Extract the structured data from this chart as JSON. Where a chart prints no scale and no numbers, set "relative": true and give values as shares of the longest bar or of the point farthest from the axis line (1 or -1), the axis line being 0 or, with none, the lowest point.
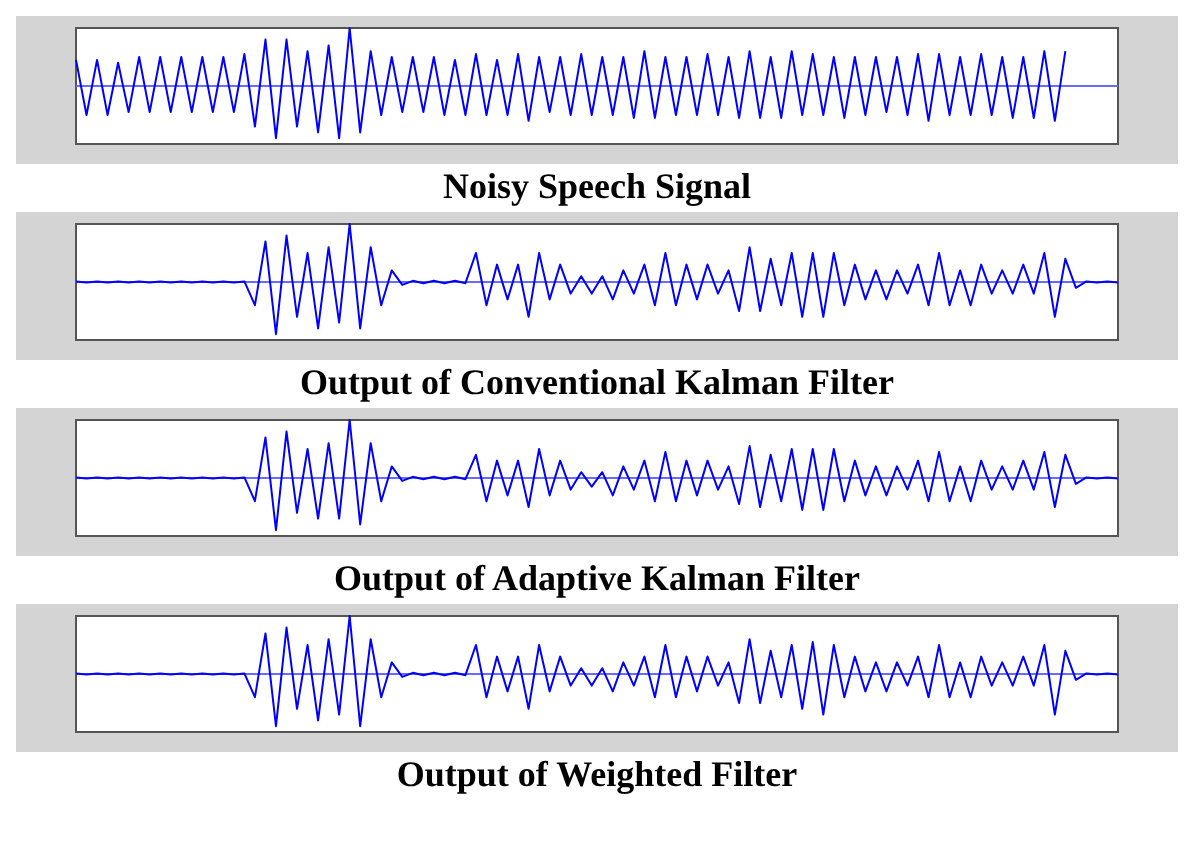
{
  "chart_data": [
    {
      "type": "line",
      "title": "Noisy Speech Signal",
      "relative": true,
      "ref_lines": [
        {
          "axis": "y",
          "value": 0,
          "color": "#6a6aff"
        }
      ],
      "tick_labels": false,
      "color": "#0000ff",
      "categories": [
        null,
        null,
        null,
        null,
        null,
        null,
        null,
        null,
        null,
        null,
        null,
        null,
        null,
        null,
        null,
        null,
        null,
        null,
        null,
        null,
        null,
        null,
        null,
        null,
        null,
        null,
        null,
        null,
        null,
        null,
        null,
        null,
        null,
        null,
        null,
        null,
        null,
        null,
        null,
        null,
        null,
        null,
        null,
        null,
        null,
        null,
        null,
        null,
        null,
        null,
        null,
        null,
        null,
        null,
        null,
        null,
        null,
        null,
        null,
        null,
        null,
        null,
        null,
        null,
        null,
        null,
        null,
        null,
        null,
        null,
        null,
        null,
        null,
        null,
        null,
        null,
        null,
        null,
        null,
        null,
        null,
        null,
        null,
        null,
        null,
        null,
        null,
        null,
        null,
        null,
        null,
        null,
        null,
        null,
        null,
        null,
        null,
        null,
        null,
        null
      ],
      "values": [
        0.45,
        -0.5,
        0.45,
        -0.5,
        0.4,
        -0.45,
        0.5,
        -0.45,
        0.5,
        -0.45,
        0.5,
        -0.45,
        0.5,
        -0.45,
        0.5,
        -0.45,
        0.55,
        -0.7,
        0.8,
        -0.9,
        0.8,
        -0.7,
        0.6,
        -0.8,
        0.7,
        -0.9,
        1.0,
        -0.8,
        0.6,
        -0.5,
        0.5,
        -0.45,
        0.5,
        -0.45,
        0.5,
        -0.5,
        0.45,
        -0.5,
        0.55,
        -0.5,
        0.45,
        -0.5,
        0.55,
        -0.6,
        0.5,
        -0.45,
        0.5,
        -0.5,
        0.55,
        -0.5,
        0.5,
        -0.5,
        0.5,
        -0.55,
        0.6,
        -0.55,
        0.5,
        -0.5,
        0.5,
        -0.5,
        0.55,
        -0.5,
        0.5,
        -0.55,
        0.6,
        -0.55,
        0.5,
        -0.55,
        0.6,
        -0.5,
        0.55,
        -0.5,
        0.5,
        -0.55,
        0.5,
        -0.5,
        0.5,
        -0.45,
        0.5,
        -0.5,
        0.55,
        -0.6,
        0.55,
        -0.5,
        0.5,
        -0.5,
        0.55,
        -0.5,
        0.5,
        -0.55,
        0.5,
        -0.55,
        0.6,
        -0.6,
        0.6,
        null,
        null,
        null,
        null,
        null
      ]
    },
    {
      "type": "line",
      "title": "Output of Conventional Kalman Filter",
      "relative": true,
      "ref_lines": [
        {
          "axis": "y",
          "value": 0,
          "color": "#6a6aff"
        }
      ],
      "tick_labels": false,
      "color": "#0000ff",
      "categories": [
        null,
        null,
        null,
        null,
        null,
        null,
        null,
        null,
        null,
        null,
        null,
        null,
        null,
        null,
        null,
        null,
        null,
        null,
        null,
        null,
        null,
        null,
        null,
        null,
        null,
        null,
        null,
        null,
        null,
        null,
        null,
        null,
        null,
        null,
        null,
        null,
        null,
        null,
        null,
        null,
        null,
        null,
        null,
        null,
        null,
        null,
        null,
        null,
        null,
        null,
        null,
        null,
        null,
        null,
        null,
        null,
        null,
        null,
        null,
        null,
        null,
        null,
        null,
        null,
        null,
        null,
        null,
        null,
        null,
        null,
        null,
        null,
        null,
        null,
        null,
        null,
        null,
        null,
        null,
        null,
        null,
        null,
        null,
        null,
        null,
        null,
        null,
        null,
        null,
        null,
        null,
        null,
        null,
        null,
        null,
        null,
        null,
        null,
        null,
        null
      ],
      "values": [
        0.01,
        -0.01,
        0.01,
        -0.01,
        0.01,
        -0.01,
        0.01,
        -0.01,
        0.01,
        -0.01,
        0.01,
        -0.01,
        0.01,
        -0.01,
        0.01,
        -0.01,
        0.01,
        -0.4,
        0.7,
        -0.9,
        0.8,
        -0.6,
        0.5,
        -0.8,
        0.6,
        -0.7,
        1.0,
        -0.8,
        0.6,
        -0.4,
        0.2,
        -0.05,
        0.02,
        -0.02,
        0.02,
        -0.02,
        0.02,
        -0.02,
        0.5,
        -0.4,
        0.3,
        -0.3,
        0.3,
        -0.6,
        0.5,
        -0.3,
        0.3,
        -0.2,
        0.1,
        -0.2,
        0.1,
        -0.3,
        0.2,
        -0.2,
        0.3,
        -0.4,
        0.5,
        -0.4,
        0.3,
        -0.3,
        0.3,
        -0.2,
        0.2,
        -0.5,
        0.6,
        -0.5,
        0.4,
        -0.4,
        0.5,
        -0.6,
        0.5,
        -0.6,
        0.5,
        -0.4,
        0.3,
        -0.3,
        0.2,
        -0.3,
        0.2,
        -0.2,
        0.3,
        -0.4,
        0.5,
        -0.4,
        0.2,
        -0.4,
        0.3,
        -0.2,
        0.2,
        -0.2,
        0.3,
        -0.2,
        0.5,
        -0.6,
        0.4,
        -0.1,
        0.01,
        -0.01,
        0.01,
        -0.01
      ]
    },
    {
      "type": "line",
      "title": "Output of Adaptive Kalman Filter",
      "relative": true,
      "ref_lines": [
        {
          "axis": "y",
          "value": 0,
          "color": "#6a6aff"
        }
      ],
      "tick_labels": false,
      "color": "#0000ff",
      "categories": [
        null,
        null,
        null,
        null,
        null,
        null,
        null,
        null,
        null,
        null,
        null,
        null,
        null,
        null,
        null,
        null,
        null,
        null,
        null,
        null,
        null,
        null,
        null,
        null,
        null,
        null,
        null,
        null,
        null,
        null,
        null,
        null,
        null,
        null,
        null,
        null,
        null,
        null,
        null,
        null,
        null,
        null,
        null,
        null,
        null,
        null,
        null,
        null,
        null,
        null,
        null,
        null,
        null,
        null,
        null,
        null,
        null,
        null,
        null,
        null,
        null,
        null,
        null,
        null,
        null,
        null,
        null,
        null,
        null,
        null,
        null,
        null,
        null,
        null,
        null,
        null,
        null,
        null,
        null,
        null,
        null,
        null,
        null,
        null,
        null,
        null,
        null,
        null,
        null,
        null,
        null,
        null,
        null,
        null,
        null,
        null,
        null,
        null,
        null,
        null
      ],
      "values": [
        0.01,
        -0.01,
        0.01,
        -0.01,
        0.01,
        -0.01,
        0.01,
        -0.01,
        0.01,
        -0.01,
        0.01,
        -0.01,
        0.01,
        -0.01,
        0.01,
        -0.01,
        0.01,
        -0.4,
        0.7,
        -0.9,
        0.8,
        -0.6,
        0.5,
        -0.7,
        0.6,
        -0.7,
        1.0,
        -0.8,
        0.6,
        -0.4,
        0.2,
        -0.05,
        0.02,
        -0.02,
        0.02,
        -0.02,
        0.02,
        -0.02,
        0.4,
        -0.4,
        0.3,
        -0.3,
        0.3,
        -0.5,
        0.5,
        -0.3,
        0.3,
        -0.2,
        0.1,
        -0.15,
        0.1,
        -0.3,
        0.2,
        -0.2,
        0.3,
        -0.4,
        0.45,
        -0.4,
        0.3,
        -0.3,
        0.3,
        -0.2,
        0.2,
        -0.45,
        0.55,
        -0.5,
        0.4,
        -0.4,
        0.5,
        -0.55,
        0.5,
        -0.55,
        0.5,
        -0.4,
        0.3,
        -0.3,
        0.2,
        -0.3,
        0.2,
        -0.2,
        0.3,
        -0.4,
        0.45,
        -0.4,
        0.2,
        -0.4,
        0.3,
        -0.2,
        0.2,
        -0.2,
        0.3,
        -0.2,
        0.45,
        -0.5,
        0.4,
        -0.1,
        0.01,
        -0.01,
        0.01,
        -0.01
      ]
    },
    {
      "type": "line",
      "title": "Output of Weighted Filter",
      "relative": true,
      "ref_lines": [
        {
          "axis": "y",
          "value": 0,
          "color": "#6a6aff"
        }
      ],
      "tick_labels": false,
      "color": "#0000ff",
      "categories": [
        null,
        null,
        null,
        null,
        null,
        null,
        null,
        null,
        null,
        null,
        null,
        null,
        null,
        null,
        null,
        null,
        null,
        null,
        null,
        null,
        null,
        null,
        null,
        null,
        null,
        null,
        null,
        null,
        null,
        null,
        null,
        null,
        null,
        null,
        null,
        null,
        null,
        null,
        null,
        null,
        null,
        null,
        null,
        null,
        null,
        null,
        null,
        null,
        null,
        null,
        null,
        null,
        null,
        null,
        null,
        null,
        null,
        null,
        null,
        null,
        null,
        null,
        null,
        null,
        null,
        null,
        null,
        null,
        null,
        null,
        null,
        null,
        null,
        null,
        null,
        null,
        null,
        null,
        null,
        null,
        null,
        null,
        null,
        null,
        null,
        null,
        null,
        null,
        null,
        null,
        null,
        null,
        null,
        null,
        null,
        null,
        null,
        null,
        null,
        null
      ],
      "values": [
        0.01,
        -0.01,
        0.01,
        -0.01,
        0.01,
        -0.01,
        0.01,
        -0.01,
        0.01,
        -0.01,
        0.01,
        -0.01,
        0.01,
        -0.01,
        0.01,
        -0.01,
        0.01,
        -0.4,
        0.7,
        -0.9,
        0.8,
        -0.6,
        0.5,
        -0.8,
        0.6,
        -0.7,
        1.0,
        -0.9,
        0.6,
        -0.4,
        0.2,
        -0.05,
        0.02,
        -0.02,
        0.02,
        -0.02,
        0.02,
        -0.02,
        0.5,
        -0.4,
        0.3,
        -0.3,
        0.3,
        -0.6,
        0.5,
        -0.3,
        0.3,
        -0.2,
        0.1,
        -0.2,
        0.1,
        -0.3,
        0.2,
        -0.2,
        0.3,
        -0.4,
        0.5,
        -0.4,
        0.3,
        -0.3,
        0.3,
        -0.2,
        0.2,
        -0.5,
        0.6,
        -0.5,
        0.4,
        -0.4,
        0.5,
        -0.6,
        0.55,
        -0.7,
        0.5,
        -0.4,
        0.3,
        -0.3,
        0.2,
        -0.3,
        0.2,
        -0.2,
        0.3,
        -0.4,
        0.5,
        -0.4,
        0.2,
        -0.4,
        0.3,
        -0.2,
        0.2,
        -0.2,
        0.3,
        -0.2,
        0.5,
        -0.7,
        0.4,
        -0.1,
        0.01,
        -0.01,
        0.01,
        -0.01
      ]
    }
  ]
}
